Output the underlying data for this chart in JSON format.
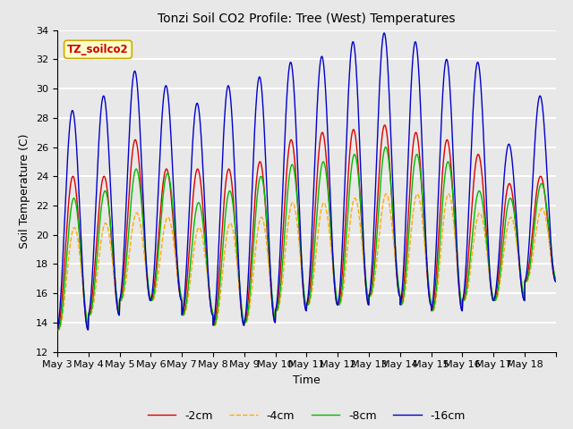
{
  "title": "Tonzi Soil CO2 Profile: Tree (West) Temperatures",
  "xlabel": "Time",
  "ylabel": "Soil Temperature (C)",
  "ylim": [
    12,
    34
  ],
  "yticks": [
    12,
    14,
    16,
    18,
    20,
    22,
    24,
    26,
    28,
    30,
    32,
    34
  ],
  "legend_labels": [
    "-2cm",
    "-4cm",
    "-8cm",
    "-16cm"
  ],
  "legend_colors": [
    "#dd0000",
    "#ffaa00",
    "#00bb00",
    "#0000cc"
  ],
  "annotation_text": "TZ_soilco2",
  "bg_color": "#e8e8e8",
  "plot_bg_color": "#e8e8e8",
  "grid_color": "white",
  "xtick_labels": [
    "May 3",
    "May 4",
    "May 5",
    "May 6",
    "May 7",
    "May 8",
    "May 9",
    "May 10",
    "May 11",
    "May 12",
    "May 13",
    "May 14",
    "May 15",
    "May 16",
    "May 17",
    "May 18"
  ],
  "n_days": 16,
  "samples_per_day": 96,
  "shared_mins": [
    13.5,
    14.5,
    15.5,
    15.5,
    14.5,
    13.8,
    14.0,
    14.8,
    15.2,
    15.2,
    15.8,
    15.2,
    14.8,
    15.5,
    15.5,
    16.8
  ],
  "shared_maxs_red": [
    24.0,
    24.0,
    26.5,
    24.5,
    24.5,
    24.5,
    25.0,
    26.5,
    27.0,
    27.2,
    27.5,
    27.0,
    26.5,
    25.5,
    23.5,
    24.0
  ],
  "shared_maxs_orange": [
    20.5,
    20.8,
    21.5,
    21.2,
    20.5,
    20.8,
    21.2,
    22.2,
    22.2,
    22.5,
    22.8,
    22.8,
    22.8,
    21.5,
    21.2,
    21.8
  ],
  "shared_maxs_green": [
    22.5,
    23.0,
    24.5,
    24.2,
    22.2,
    23.0,
    24.0,
    24.8,
    25.0,
    25.5,
    26.0,
    25.5,
    25.0,
    23.0,
    22.5,
    23.5
  ],
  "shared_maxs_blue": [
    28.5,
    29.5,
    31.2,
    30.2,
    29.0,
    30.2,
    30.8,
    31.8,
    32.2,
    33.2,
    33.8,
    33.2,
    32.0,
    31.8,
    26.2,
    29.5
  ]
}
